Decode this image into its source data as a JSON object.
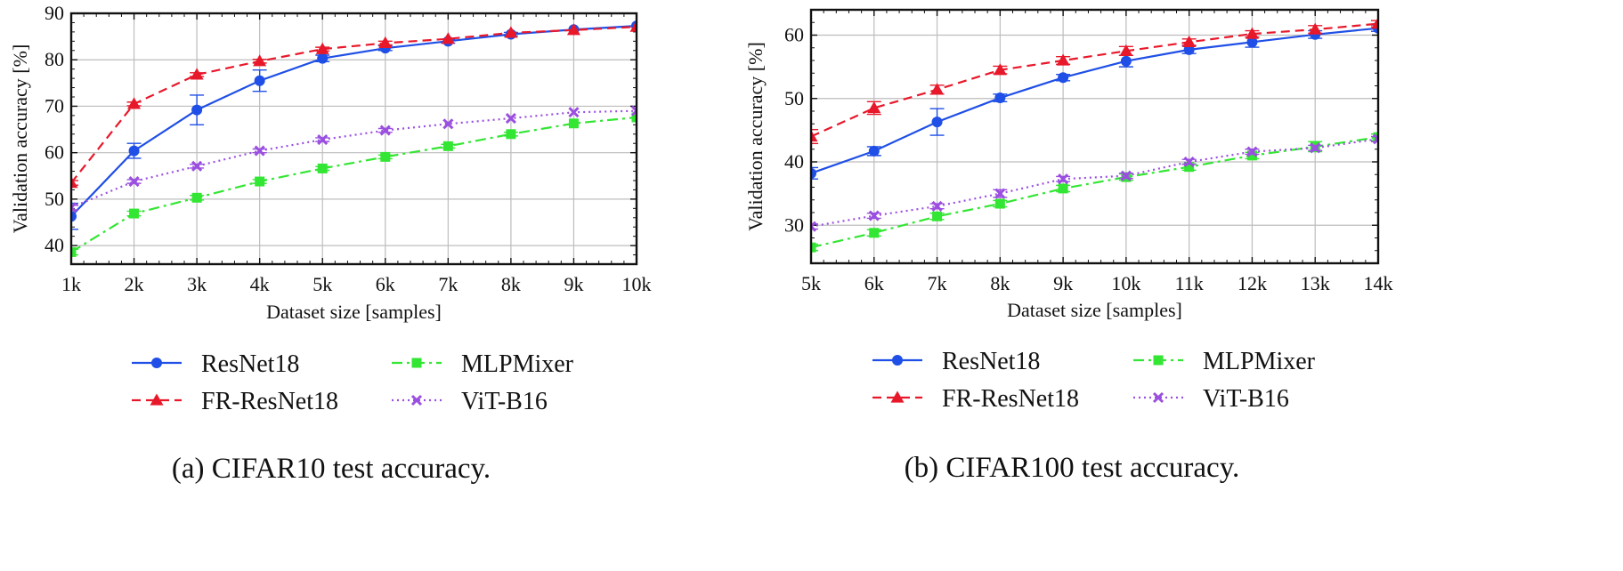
{
  "chart_data": [
    {
      "type": "line",
      "caption": "(a) CIFAR10 test accuracy.",
      "xlabel": "Dataset size [samples]",
      "ylabel": "Validation accuracy [%]",
      "x": [
        1000,
        2000,
        3000,
        4000,
        5000,
        6000,
        7000,
        8000,
        9000,
        10000
      ],
      "xtick_labels": [
        "1k",
        "2k",
        "3k",
        "4k",
        "5k",
        "6k",
        "7k",
        "8k",
        "9k",
        "10k"
      ],
      "yticks": [
        40,
        50,
        60,
        70,
        80,
        90
      ],
      "xlim": [
        1000,
        10000
      ],
      "ylim": [
        36,
        90
      ],
      "grid": true,
      "legend_position": "below",
      "series": [
        {
          "name": "ResNet18",
          "color": "#1f4fe6",
          "dash": "solid",
          "marker": "circle",
          "values": [
            46.3,
            60.4,
            69.2,
            75.5,
            80.3,
            82.5,
            84.0,
            85.5,
            86.5,
            87.3
          ],
          "errors": [
            2.8,
            1.6,
            3.2,
            2.3,
            0.7,
            0.5,
            0.4,
            0.4,
            0.3,
            0.3
          ]
        },
        {
          "name": "FR-ResNet18",
          "color": "#e8182b",
          "dash": "dashed",
          "marker": "triangle",
          "values": [
            53.5,
            70.5,
            76.8,
            79.7,
            82.3,
            83.6,
            84.5,
            85.8,
            86.4,
            87.1
          ],
          "errors": [
            0.5,
            0.4,
            0.4,
            0.4,
            0.4,
            0.4,
            0.3,
            0.3,
            0.3,
            0.3
          ]
        },
        {
          "name": "MLPMixer",
          "color": "#33e633",
          "dash": "dashdot",
          "marker": "square",
          "values": [
            38.6,
            46.9,
            50.3,
            53.8,
            56.6,
            59.1,
            61.4,
            64.0,
            66.3,
            67.6
          ],
          "errors": [
            0.6,
            0.5,
            0.5,
            0.4,
            0.4,
            0.4,
            0.4,
            0.4,
            0.3,
            0.3
          ]
        },
        {
          "name": "ViT-B16",
          "color": "#9b4fe0",
          "dash": "dotted",
          "marker": "x",
          "values": [
            48.2,
            53.8,
            57.1,
            60.4,
            62.8,
            64.8,
            66.2,
            67.4,
            68.7,
            69.0
          ],
          "errors": [
            0.5,
            0.4,
            0.4,
            0.4,
            0.4,
            0.4,
            0.3,
            0.3,
            0.3,
            0.3
          ]
        }
      ]
    },
    {
      "type": "line",
      "caption": "(b) CIFAR100 test accuracy.",
      "xlabel": "Dataset size [samples]",
      "ylabel": "Validation accuracy [%]",
      "x": [
        5000,
        6000,
        7000,
        8000,
        9000,
        10000,
        11000,
        12000,
        13000,
        14000
      ],
      "xtick_labels": [
        "5k",
        "6k",
        "7k",
        "8k",
        "9k",
        "10k",
        "11k",
        "12k",
        "13k",
        "14k"
      ],
      "yticks": [
        30,
        40,
        50,
        60
      ],
      "xlim": [
        5000,
        14000
      ],
      "ylim": [
        24,
        64
      ],
      "grid": true,
      "legend_position": "below",
      "series": [
        {
          "name": "ResNet18",
          "color": "#1f4fe6",
          "dash": "solid",
          "marker": "circle",
          "values": [
            38.2,
            41.7,
            46.3,
            50.1,
            53.3,
            55.9,
            57.7,
            58.9,
            60.1,
            61.1
          ],
          "errors": [
            0.9,
            0.7,
            2.1,
            0.6,
            0.5,
            0.9,
            0.6,
            0.8,
            0.6,
            0.5
          ]
        },
        {
          "name": "FR-ResNet18",
          "color": "#e8182b",
          "dash": "dashed",
          "marker": "triangle",
          "values": [
            44.0,
            48.5,
            51.4,
            54.5,
            56.0,
            57.5,
            58.9,
            60.2,
            60.9,
            61.8
          ],
          "errors": [
            1.1,
            1.0,
            0.7,
            0.6,
            0.6,
            0.7,
            0.5,
            0.5,
            0.6,
            0.5
          ]
        },
        {
          "name": "MLPMixer",
          "color": "#33e633",
          "dash": "dashdot",
          "marker": "square",
          "values": [
            26.5,
            28.8,
            31.4,
            33.4,
            35.8,
            37.6,
            39.2,
            41.0,
            42.4,
            43.9
          ],
          "errors": [
            0.5,
            0.5,
            0.5,
            0.5,
            0.5,
            0.5,
            0.5,
            0.5,
            0.8,
            0.5
          ]
        },
        {
          "name": "ViT-B16",
          "color": "#9b4fe0",
          "dash": "dotted",
          "marker": "x",
          "values": [
            29.8,
            31.5,
            33.0,
            35.0,
            37.3,
            37.8,
            40.0,
            41.6,
            42.2,
            43.6
          ],
          "errors": [
            0.4,
            0.4,
            0.4,
            0.6,
            0.4,
            0.4,
            0.4,
            0.4,
            0.4,
            0.4
          ]
        }
      ]
    }
  ]
}
